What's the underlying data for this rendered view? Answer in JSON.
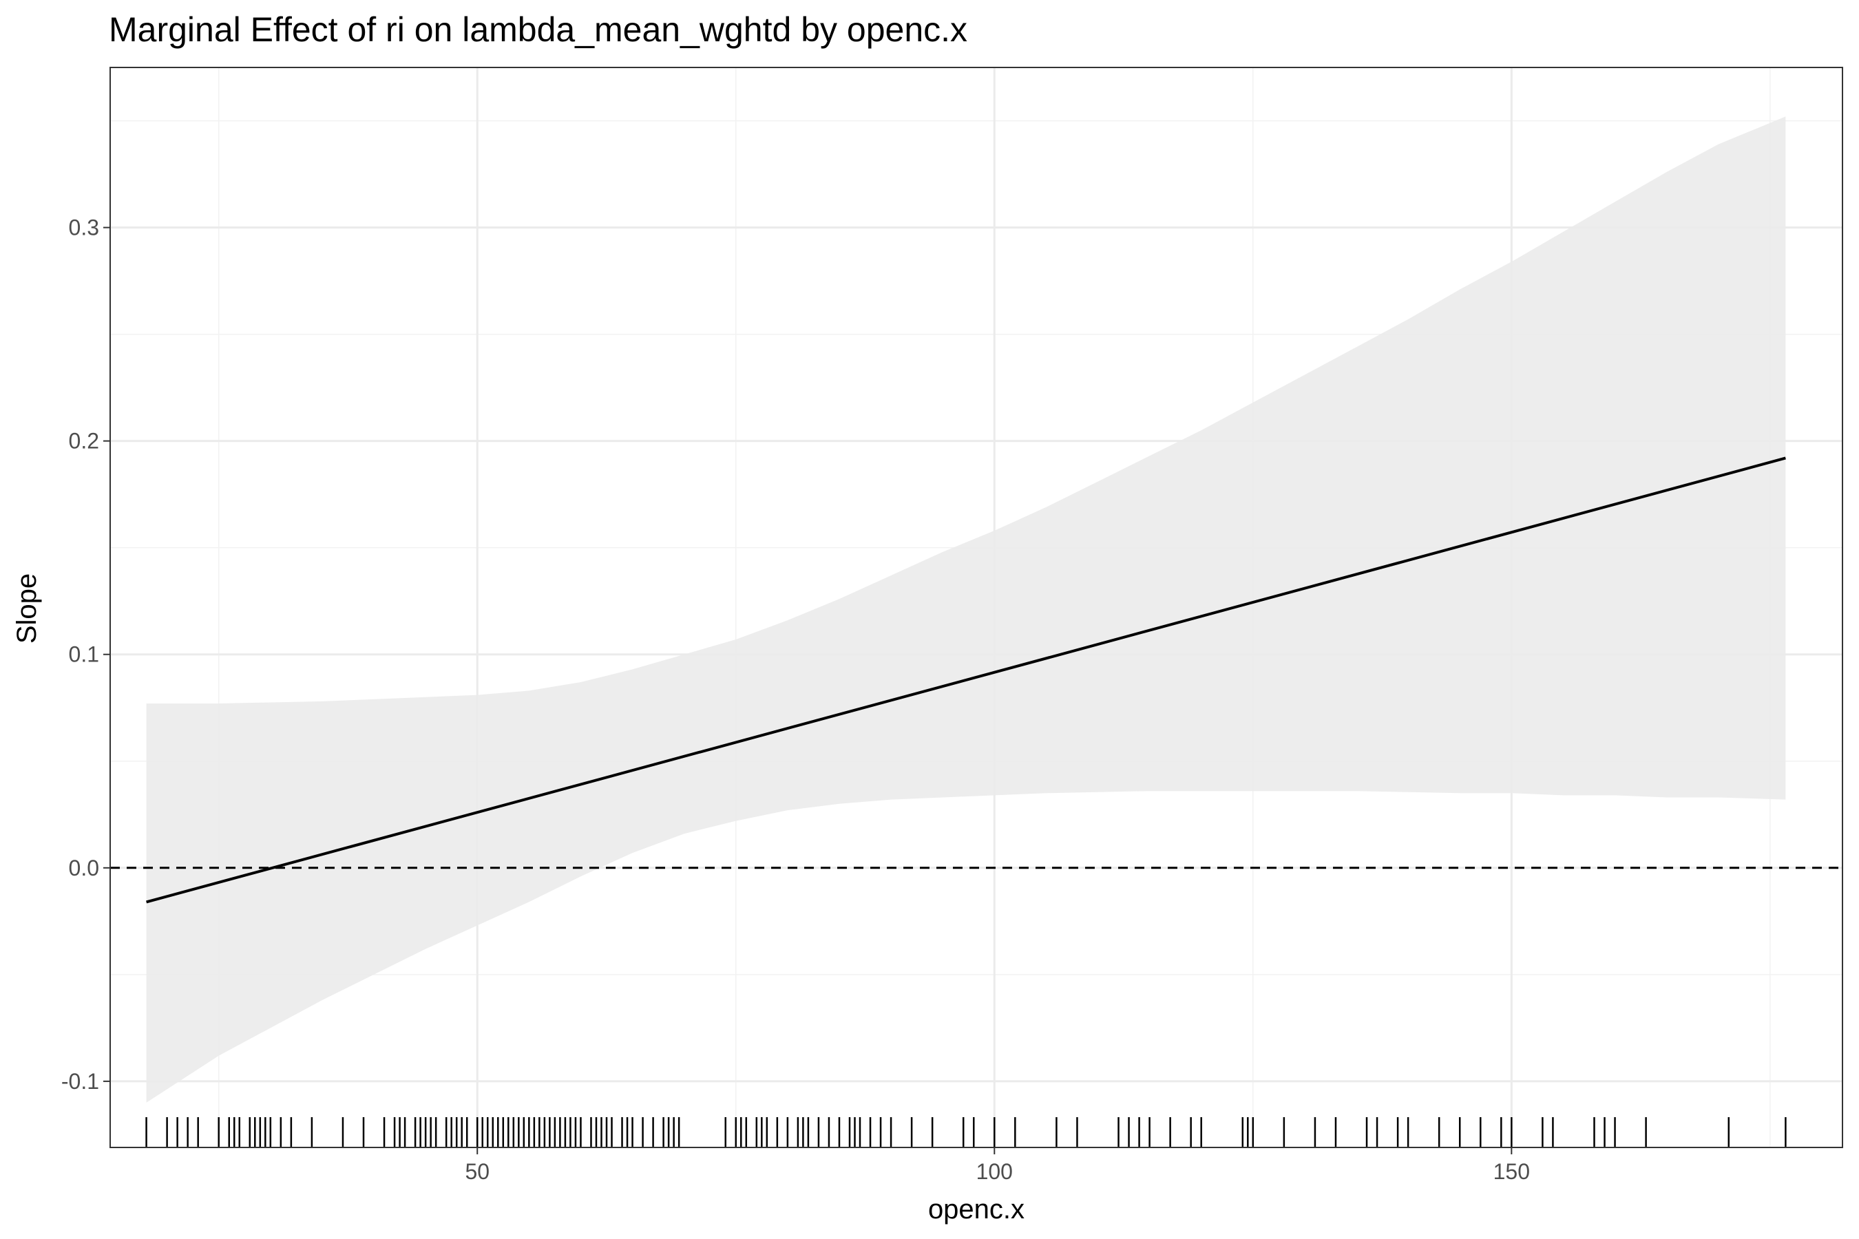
{
  "chart_data": {
    "type": "line",
    "title": "Marginal Effect of ri on lambda_mean_wghtd by openc.x",
    "xlabel": "openc.x",
    "ylabel": "Slope",
    "xlim": [
      14.5,
      182
    ],
    "ylim": [
      -0.131,
      0.375
    ],
    "x_ticks": [
      {
        "value": 50,
        "label": "50"
      },
      {
        "value": 100,
        "label": "100"
      },
      {
        "value": 150,
        "label": "150"
      }
    ],
    "y_ticks": [
      {
        "value": -0.1,
        "label": "-0.1"
      },
      {
        "value": 0.0,
        "label": "0.0"
      },
      {
        "value": 0.1,
        "label": "0.1"
      },
      {
        "value": 0.2,
        "label": "0.2"
      },
      {
        "value": 0.3,
        "label": "0.3"
      }
    ],
    "x_minor_ticks": [
      25,
      75,
      125,
      175
    ],
    "y_minor_ticks": [
      -0.05,
      0.05,
      0.15,
      0.25,
      0.35
    ],
    "grid": true,
    "reference_line": {
      "y": 0,
      "style": "dashed",
      "color": "#000000"
    },
    "line": {
      "color": "#000000",
      "x": [
        18,
        176.5
      ],
      "y": [
        -0.016,
        0.192
      ]
    },
    "confidence_band": {
      "color": "#ebebeb",
      "x": [
        18,
        25,
        35,
        45,
        50,
        55,
        60,
        65,
        70,
        75,
        80,
        85,
        90,
        95,
        100,
        105,
        110,
        115,
        120,
        125,
        130,
        135,
        140,
        145,
        150,
        155,
        160,
        165,
        170,
        176.5
      ],
      "upper": [
        0.077,
        0.077,
        0.078,
        0.08,
        0.081,
        0.083,
        0.087,
        0.093,
        0.1,
        0.107,
        0.116,
        0.126,
        0.137,
        0.148,
        0.158,
        0.169,
        0.181,
        0.193,
        0.205,
        0.218,
        0.231,
        0.244,
        0.257,
        0.271,
        0.284,
        0.298,
        0.312,
        0.326,
        0.339,
        0.352
      ],
      "lower": [
        -0.11,
        -0.088,
        -0.062,
        -0.038,
        -0.027,
        -0.016,
        -0.004,
        0.007,
        0.016,
        0.022,
        0.027,
        0.03,
        0.032,
        0.033,
        0.034,
        0.035,
        0.0355,
        0.036,
        0.036,
        0.036,
        0.036,
        0.036,
        0.0355,
        0.035,
        0.035,
        0.034,
        0.034,
        0.033,
        0.033,
        0.032
      ]
    },
    "rug": {
      "color": "#000000",
      "x": [
        18,
        20,
        21,
        22,
        23,
        25,
        26,
        26.5,
        27,
        28,
        28.5,
        29,
        29.5,
        30,
        31,
        32,
        34,
        37,
        39,
        41,
        42,
        42.5,
        43,
        44,
        44.5,
        45,
        45.5,
        46,
        47,
        47.5,
        48,
        48.5,
        49,
        50,
        50.5,
        51,
        51.5,
        52,
        52.5,
        53,
        53.5,
        54,
        54.5,
        55,
        55.5,
        56,
        56.5,
        57,
        57.5,
        58,
        58.5,
        59,
        59.5,
        60,
        61,
        61.5,
        62,
        62.5,
        63,
        64,
        64.5,
        65,
        66,
        67,
        68,
        68.5,
        69,
        69.5,
        74,
        75,
        75.5,
        76,
        77,
        77.5,
        78,
        79,
        80,
        81,
        81.5,
        82,
        83,
        84,
        85,
        86,
        86.5,
        87,
        88,
        89,
        90,
        92,
        94,
        97,
        98,
        100,
        102,
        106,
        108,
        112,
        113,
        114,
        115,
        117,
        119,
        120,
        124,
        124.5,
        125,
        128,
        131,
        133,
        136,
        137,
        139,
        140,
        143,
        145,
        147,
        149,
        150,
        153,
        154,
        158,
        159,
        160,
        163,
        171,
        176.5
      ]
    }
  }
}
